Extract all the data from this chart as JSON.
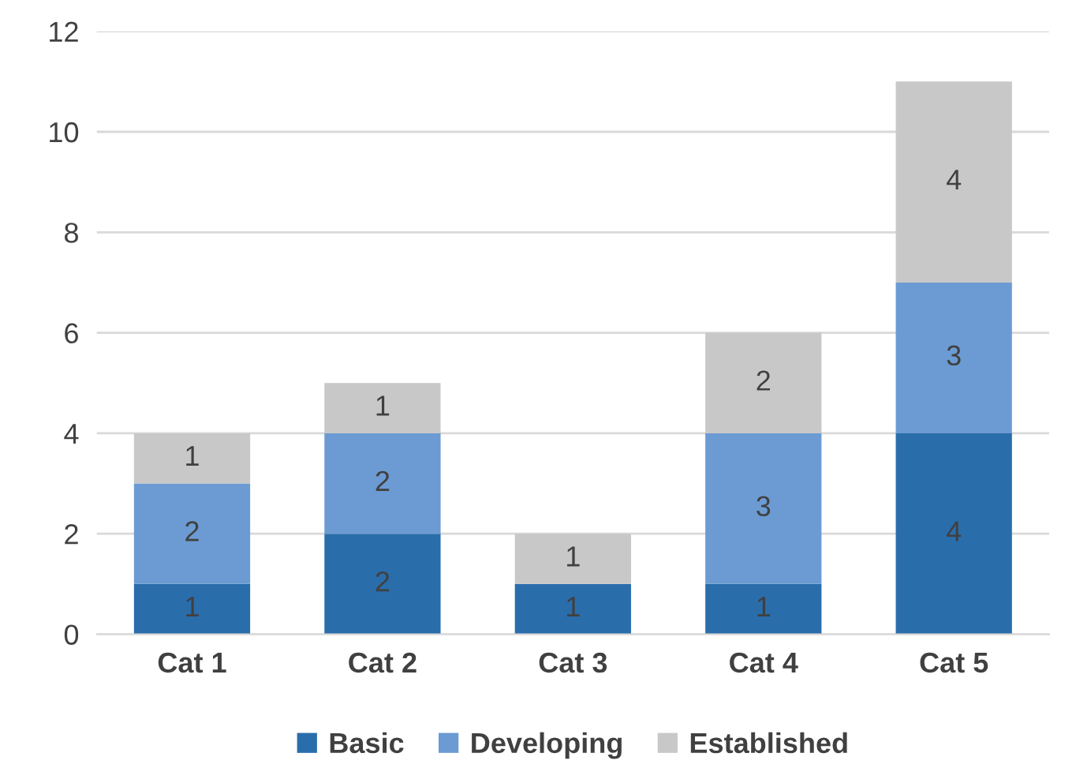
{
  "chart_data": {
    "type": "bar",
    "stacked": true,
    "categories": [
      "Cat 1",
      "Cat 2",
      "Cat 3",
      "Cat 4",
      "Cat 5"
    ],
    "series": [
      {
        "name": "Basic",
        "color": "#2a6dab",
        "values": [
          1,
          2,
          1,
          1,
          4
        ],
        "value_labels": [
          "1",
          "2",
          "1",
          "1",
          "4"
        ]
      },
      {
        "name": "Developing",
        "color": "#6b9bd2",
        "values": [
          2,
          2,
          0,
          3,
          3
        ],
        "value_labels": [
          "2",
          "2",
          null,
          "3",
          "3"
        ]
      },
      {
        "name": "Established",
        "color": "#c8c8c8",
        "values": [
          1,
          1,
          1,
          2,
          4
        ],
        "value_labels": [
          "1",
          "1",
          "1",
          "2",
          "4"
        ]
      }
    ],
    "ylim": [
      0,
      12
    ],
    "yticks": [
      0,
      2,
      4,
      6,
      8,
      10,
      12
    ],
    "grid": "y",
    "legend": "bottom"
  }
}
